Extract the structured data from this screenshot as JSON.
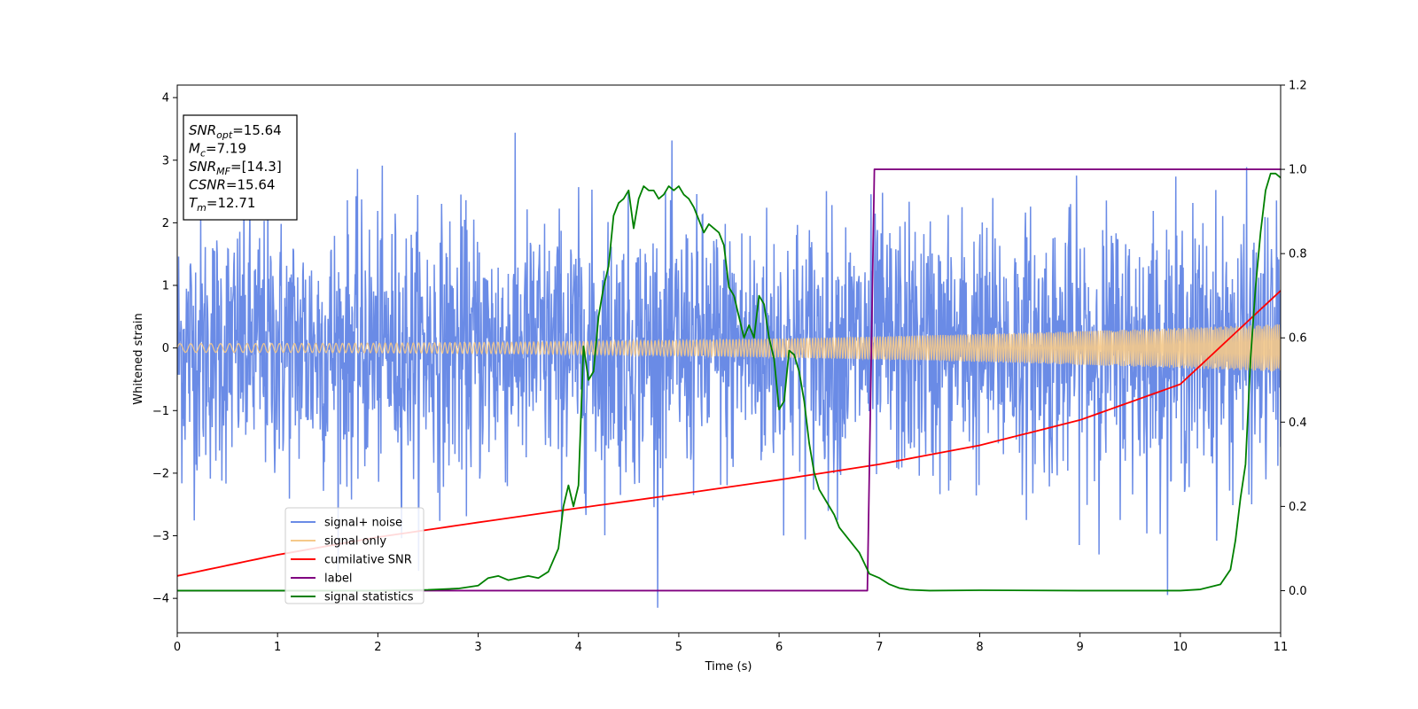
{
  "chart_data": {
    "type": "line",
    "xlabel": "Time (s)",
    "ylabel": "Whitened strain",
    "xlim": [
      0,
      11
    ],
    "ylim": [
      -4.55,
      4.2
    ],
    "y2lim": [
      -0.1,
      1.2
    ],
    "x_ticks": [
      "0",
      "1",
      "2",
      "3",
      "4",
      "5",
      "6",
      "7",
      "8",
      "9",
      "10",
      "11"
    ],
    "y_ticks": [
      "−4",
      "−3",
      "−2",
      "−1",
      "0",
      "1",
      "2",
      "3",
      "4"
    ],
    "y2_ticks": [
      "0.0",
      "0.2",
      "0.4",
      "0.6",
      "0.8",
      "1.0",
      "1.2"
    ],
    "legend_position": "lower-left",
    "grid": false,
    "annotation": {
      "lines": [
        {
          "base": "SNR",
          "sub": "opt",
          "rest": "=15.64"
        },
        {
          "base": "M",
          "sub": "c",
          "rest": "=7.19"
        },
        {
          "base": "SNR",
          "sub": "MF",
          "rest": "=[14.3]"
        },
        {
          "base": "CSNR",
          "sub": "",
          "rest": "=15.64"
        },
        {
          "base": "T",
          "sub": "m",
          "rest": "=12.71"
        }
      ]
    },
    "series": [
      {
        "name": "signal+ noise",
        "axis": "left",
        "color": "#6a8be6",
        "kind": "noise",
        "sigma": 1.0,
        "y_min": -4.15,
        "y_max": 3.82
      },
      {
        "name": "signal only",
        "axis": "left",
        "color": "#f5c98a",
        "kind": "chirp",
        "amplitude_start": 0.07,
        "amplitude_end": 0.38,
        "x_start": 0,
        "x_end": 11
      },
      {
        "name": "cumilative SNR",
        "axis": "right",
        "color": "#ff0000",
        "kind": "curve",
        "x": [
          0,
          1,
          2,
          3,
          4,
          5,
          6,
          7,
          8,
          9,
          10,
          11
        ],
        "y": [
          0.035,
          0.085,
          0.127,
          0.162,
          0.196,
          0.229,
          0.263,
          0.3,
          0.345,
          0.405,
          0.49,
          0.712
        ]
      },
      {
        "name": "label",
        "axis": "right",
        "color": "#800080",
        "kind": "step",
        "x": [
          0,
          6.88,
          6.95,
          11
        ],
        "y": [
          0,
          0,
          1,
          1
        ]
      },
      {
        "name": "signal statistics",
        "axis": "right",
        "color": "#008000",
        "kind": "curve",
        "x": [
          0,
          0.5,
          1.0,
          1.5,
          2.0,
          2.5,
          2.8,
          3.0,
          3.1,
          3.2,
          3.3,
          3.4,
          3.5,
          3.6,
          3.7,
          3.8,
          3.85,
          3.9,
          3.95,
          4.0,
          4.05,
          4.1,
          4.15,
          4.2,
          4.25,
          4.3,
          4.35,
          4.4,
          4.45,
          4.5,
          4.55,
          4.6,
          4.65,
          4.7,
          4.75,
          4.8,
          4.85,
          4.9,
          4.95,
          5.0,
          5.05,
          5.1,
          5.15,
          5.2,
          5.25,
          5.3,
          5.35,
          5.4,
          5.45,
          5.5,
          5.55,
          5.6,
          5.65,
          5.7,
          5.75,
          5.8,
          5.85,
          5.9,
          5.95,
          6.0,
          6.05,
          6.1,
          6.15,
          6.2,
          6.25,
          6.3,
          6.35,
          6.4,
          6.45,
          6.5,
          6.55,
          6.6,
          6.7,
          6.8,
          6.9,
          7.0,
          7.1,
          7.2,
          7.3,
          7.5,
          8.0,
          9.0,
          10.0,
          10.2,
          10.4,
          10.5,
          10.55,
          10.6,
          10.65,
          10.7,
          10.75,
          10.8,
          10.85,
          10.9,
          10.95,
          11.0
        ],
        "y": [
          0.0,
          0.0,
          0.0,
          0.0,
          0.0,
          0.002,
          0.005,
          0.012,
          0.03,
          0.035,
          0.025,
          0.03,
          0.035,
          0.03,
          0.045,
          0.1,
          0.2,
          0.25,
          0.2,
          0.25,
          0.58,
          0.5,
          0.52,
          0.65,
          0.72,
          0.77,
          0.89,
          0.92,
          0.93,
          0.95,
          0.86,
          0.93,
          0.96,
          0.95,
          0.95,
          0.93,
          0.94,
          0.96,
          0.95,
          0.96,
          0.94,
          0.93,
          0.91,
          0.88,
          0.85,
          0.87,
          0.86,
          0.85,
          0.82,
          0.72,
          0.7,
          0.65,
          0.6,
          0.63,
          0.6,
          0.7,
          0.68,
          0.6,
          0.55,
          0.43,
          0.45,
          0.57,
          0.56,
          0.52,
          0.45,
          0.35,
          0.28,
          0.24,
          0.22,
          0.2,
          0.18,
          0.15,
          0.12,
          0.09,
          0.04,
          0.03,
          0.015,
          0.006,
          0.002,
          0.0,
          0.001,
          0.0,
          0.0,
          0.003,
          0.015,
          0.05,
          0.12,
          0.22,
          0.3,
          0.55,
          0.72,
          0.85,
          0.95,
          0.99,
          0.99,
          0.98
        ]
      }
    ]
  }
}
